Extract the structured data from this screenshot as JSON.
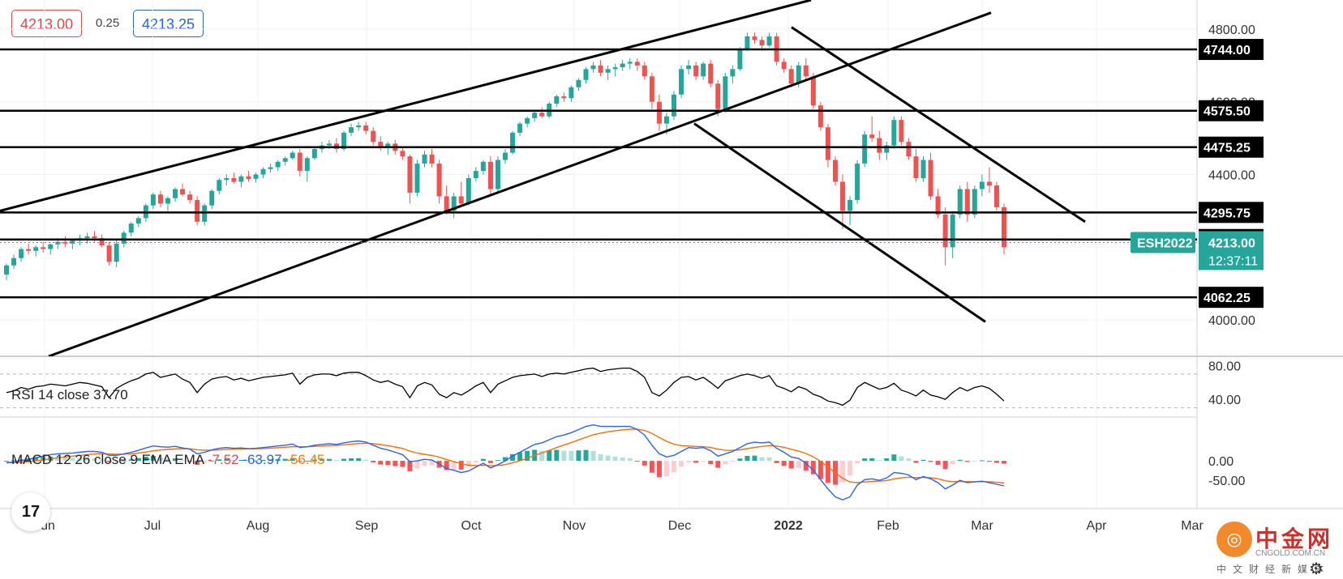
{
  "header": {
    "bid": "4213.00",
    "spread": "0.25",
    "ask": "4213.25"
  },
  "chart_data": [
    {
      "type": "candlestick",
      "symbol": "ESH2022",
      "last_price": "4213.00",
      "countdown": "12:37:11",
      "x_tick_labels": [
        "Jun",
        "Jul",
        "Aug",
        "Sep",
        "Oct",
        "Nov",
        "Dec",
        "2022",
        "Feb",
        "Mar",
        "Apr",
        "Mar"
      ],
      "y_tick_labels": [
        "4800.00",
        "4600.00",
        "4400.00",
        "4000.00"
      ],
      "ylim": [
        3900,
        4880
      ],
      "horizontal_levels": [
        "4744.00",
        "4575.50",
        "4475.25",
        "4295.75",
        "4221.25",
        "4062.25"
      ],
      "trendlines": [
        {
          "from": [
            "Jun",
            4300
          ],
          "to": [
            "2022",
            4880
          ]
        },
        {
          "from": [
            "Jun",
            3900
          ],
          "to": [
            "Mar",
            4845
          ]
        },
        {
          "from": [
            "2022",
            4805
          ],
          "to": [
            "Apr",
            4270
          ]
        },
        {
          "from": [
            "Dec",
            4540
          ],
          "to": [
            "Mar",
            3995
          ]
        }
      ],
      "candles_ohlc": [
        [
          4125,
          4155,
          4110,
          4150
        ],
        [
          4150,
          4180,
          4140,
          4170
        ],
        [
          4170,
          4200,
          4160,
          4195
        ],
        [
          4195,
          4210,
          4180,
          4190
        ],
        [
          4190,
          4205,
          4175,
          4200
        ],
        [
          4200,
          4215,
          4185,
          4195
        ],
        [
          4195,
          4210,
          4180,
          4208
        ],
        [
          4208,
          4225,
          4195,
          4215
        ],
        [
          4215,
          4230,
          4200,
          4210
        ],
        [
          4210,
          4220,
          4195,
          4218
        ],
        [
          4218,
          4235,
          4205,
          4225
        ],
        [
          4225,
          4240,
          4210,
          4230
        ],
        [
          4230,
          4245,
          4215,
          4225
        ],
        [
          4225,
          4235,
          4200,
          4205
        ],
        [
          4205,
          4215,
          4150,
          4160
        ],
        [
          4160,
          4220,
          4145,
          4210
        ],
        [
          4210,
          4245,
          4200,
          4240
        ],
        [
          4240,
          4270,
          4230,
          4265
        ],
        [
          4265,
          4285,
          4255,
          4280
        ],
        [
          4280,
          4320,
          4270,
          4315
        ],
        [
          4315,
          4350,
          4305,
          4345
        ],
        [
          4345,
          4355,
          4310,
          4320
        ],
        [
          4320,
          4340,
          4300,
          4335
        ],
        [
          4335,
          4365,
          4325,
          4360
        ],
        [
          4360,
          4375,
          4340,
          4345
        ],
        [
          4345,
          4355,
          4320,
          4330
        ],
        [
          4330,
          4340,
          4260,
          4270
        ],
        [
          4270,
          4320,
          4260,
          4315
        ],
        [
          4315,
          4360,
          4305,
          4355
        ],
        [
          4355,
          4390,
          4345,
          4385
        ],
        [
          4385,
          4400,
          4370,
          4390
        ],
        [
          4390,
          4405,
          4375,
          4380
        ],
        [
          4380,
          4400,
          4365,
          4395
        ],
        [
          4395,
          4410,
          4380,
          4388
        ],
        [
          4388,
          4405,
          4378,
          4400
        ],
        [
          4400,
          4420,
          4390,
          4415
        ],
        [
          4415,
          4430,
          4405,
          4420
        ],
        [
          4420,
          4440,
          4410,
          4435
        ],
        [
          4435,
          4450,
          4425,
          4445
        ],
        [
          4445,
          4465,
          4440,
          4460
        ],
        [
          4460,
          4470,
          4395,
          4410
        ],
        [
          4410,
          4450,
          4380,
          4445
        ],
        [
          4445,
          4475,
          4440,
          4470
        ],
        [
          4470,
          4490,
          4460,
          4480
        ],
        [
          4480,
          4495,
          4470,
          4485
        ],
        [
          4485,
          4500,
          4460,
          4470
        ],
        [
          4470,
          4520,
          4465,
          4515
        ],
        [
          4515,
          4540,
          4505,
          4530
        ],
        [
          4530,
          4545,
          4520,
          4535
        ],
        [
          4535,
          4545,
          4510,
          4520
        ],
        [
          4520,
          4530,
          4480,
          4490
        ],
        [
          4490,
          4505,
          4465,
          4475
        ],
        [
          4475,
          4490,
          4455,
          4485
        ],
        [
          4485,
          4495,
          4455,
          4465
        ],
        [
          4465,
          4475,
          4440,
          4450
        ],
        [
          4450,
          4455,
          4320,
          4350
        ],
        [
          4350,
          4440,
          4340,
          4430
        ],
        [
          4430,
          4465,
          4420,
          4455
        ],
        [
          4455,
          4470,
          4420,
          4430
        ],
        [
          4430,
          4440,
          4320,
          4340
        ],
        [
          4340,
          4370,
          4290,
          4300
        ],
        [
          4300,
          4350,
          4280,
          4340
        ],
        [
          4340,
          4380,
          4310,
          4320
        ],
        [
          4320,
          4400,
          4315,
          4390
        ],
        [
          4390,
          4420,
          4380,
          4410
        ],
        [
          4410,
          4440,
          4400,
          4435
        ],
        [
          4435,
          4450,
          4340,
          4360
        ],
        [
          4360,
          4450,
          4350,
          4440
        ],
        [
          4440,
          4470,
          4430,
          4460
        ],
        [
          4460,
          4520,
          4455,
          4515
        ],
        [
          4515,
          4545,
          4505,
          4540
        ],
        [
          4540,
          4560,
          4530,
          4555
        ],
        [
          4555,
          4575,
          4545,
          4570
        ],
        [
          4570,
          4585,
          4555,
          4560
        ],
        [
          4560,
          4600,
          4555,
          4595
        ],
        [
          4595,
          4620,
          4585,
          4615
        ],
        [
          4615,
          4625,
          4600,
          4610
        ],
        [
          4610,
          4645,
          4600,
          4640
        ],
        [
          4640,
          4665,
          4630,
          4660
        ],
        [
          4660,
          4695,
          4650,
          4690
        ],
        [
          4690,
          4710,
          4680,
          4700
        ],
        [
          4700,
          4715,
          4670,
          4680
        ],
        [
          4680,
          4700,
          4660,
          4690
        ],
        [
          4690,
          4705,
          4670,
          4695
        ],
        [
          4695,
          4715,
          4685,
          4705
        ],
        [
          4705,
          4720,
          4690,
          4710
        ],
        [
          4710,
          4720,
          4685,
          4700
        ],
        [
          4700,
          4710,
          4660,
          4670
        ],
        [
          4670,
          4680,
          4580,
          4600
        ],
        [
          4600,
          4620,
          4520,
          4540
        ],
        [
          4540,
          4570,
          4510,
          4560
        ],
        [
          4560,
          4630,
          4550,
          4620
        ],
        [
          4620,
          4700,
          4610,
          4690
        ],
        [
          4690,
          4715,
          4675,
          4700
        ],
        [
          4700,
          4710,
          4660,
          4670
        ],
        [
          4670,
          4710,
          4660,
          4705
        ],
        [
          4705,
          4715,
          4640,
          4650
        ],
        [
          4650,
          4660,
          4560,
          4580
        ],
        [
          4580,
          4680,
          4570,
          4670
        ],
        [
          4670,
          4700,
          4650,
          4690
        ],
        [
          4690,
          4750,
          4685,
          4745
        ],
        [
          4745,
          4790,
          4740,
          4780
        ],
        [
          4780,
          4790,
          4760,
          4770
        ],
        [
          4770,
          4780,
          4740,
          4755
        ],
        [
          4755,
          4790,
          4750,
          4780
        ],
        [
          4780,
          4790,
          4700,
          4710
        ],
        [
          4710,
          4720,
          4680,
          4690
        ],
        [
          4690,
          4700,
          4640,
          4650
        ],
        [
          4650,
          4710,
          4640,
          4700
        ],
        [
          4700,
          4720,
          4660,
          4670
        ],
        [
          4670,
          4680,
          4580,
          4590
        ],
        [
          4590,
          4600,
          4520,
          4530
        ],
        [
          4530,
          4540,
          4420,
          4440
        ],
        [
          4440,
          4450,
          4370,
          4380
        ],
        [
          4380,
          4400,
          4250,
          4300
        ],
        [
          4300,
          4340,
          4260,
          4330
        ],
        [
          4330,
          4440,
          4320,
          4430
        ],
        [
          4430,
          4520,
          4420,
          4510
        ],
        [
          4510,
          4560,
          4490,
          4500
        ],
        [
          4500,
          4520,
          4440,
          4460
        ],
        [
          4460,
          4490,
          4440,
          4480
        ],
        [
          4480,
          4560,
          4470,
          4550
        ],
        [
          4550,
          4560,
          4480,
          4490
        ],
        [
          4490,
          4500,
          4440,
          4450
        ],
        [
          4450,
          4470,
          4380,
          4390
        ],
        [
          4390,
          4450,
          4380,
          4440
        ],
        [
          4440,
          4460,
          4330,
          4340
        ],
        [
          4340,
          4360,
          4280,
          4290
        ],
        [
          4290,
          4310,
          4150,
          4200
        ],
        [
          4200,
          4300,
          4170,
          4290
        ],
        [
          4290,
          4370,
          4280,
          4360
        ],
        [
          4360,
          4380,
          4270,
          4290
        ],
        [
          4290,
          4370,
          4280,
          4360
        ],
        [
          4360,
          4400,
          4340,
          4380
        ],
        [
          4380,
          4420,
          4350,
          4370
        ],
        [
          4370,
          4380,
          4300,
          4310
        ],
        [
          4310,
          4320,
          4180,
          4200
        ]
      ],
      "rsi": {
        "label": "RSI 14 close",
        "value": "37.70",
        "ylim": [
          20,
          90
        ],
        "levels": [
          70,
          30
        ],
        "tick_labels": [
          "80.00",
          "40.00"
        ],
        "values": [
          48,
          50,
          54,
          52,
          55,
          56,
          58,
          57,
          56,
          58,
          60,
          59,
          57,
          55,
          42,
          53,
          58,
          62,
          65,
          70,
          72,
          66,
          68,
          70,
          64,
          60,
          48,
          58,
          64,
          66,
          67,
          63,
          65,
          62,
          64,
          66,
          67,
          68,
          69,
          71,
          58,
          66,
          69,
          70,
          70,
          68,
          71,
          72,
          72,
          68,
          63,
          60,
          62,
          58,
          55,
          42,
          56,
          60,
          57,
          46,
          42,
          48,
          45,
          50,
          56,
          60,
          48,
          58,
          62,
          66,
          68,
          69,
          70,
          67,
          70,
          71,
          70,
          72,
          74,
          76,
          77,
          73,
          75,
          76,
          77,
          77,
          73,
          66,
          48,
          44,
          51,
          60,
          66,
          67,
          63,
          66,
          60,
          53,
          62,
          65,
          68,
          70,
          68,
          65,
          68,
          56,
          53,
          49,
          55,
          52,
          46,
          43,
          38,
          36,
          33,
          39,
          54,
          60,
          56,
          52,
          54,
          59,
          51,
          48,
          44,
          51,
          45,
          43,
          40,
          48,
          54,
          50,
          54,
          56,
          53,
          46,
          38
        ]
      },
      "macd": {
        "label": "MACD 12 26 close 9 EMA EMA",
        "histogram_value": "-7.52",
        "macd_value": "-63.97",
        "signal_value": "-56.45",
        "ylim": [
          -120,
          110
        ],
        "tick_labels": [
          "0.00",
          "-50.00"
        ],
        "macd": [
          -5,
          -3,
          0,
          4,
          8,
          12,
          16,
          18,
          19,
          20,
          22,
          24,
          24,
          22,
          14,
          14,
          18,
          22,
          27,
          33,
          38,
          36,
          35,
          37,
          33,
          30,
          18,
          22,
          28,
          32,
          34,
          32,
          33,
          31,
          32,
          34,
          36,
          38,
          40,
          43,
          34,
          36,
          40,
          42,
          44,
          42,
          46,
          49,
          51,
          48,
          40,
          32,
          28,
          22,
          16,
          -2,
          0,
          4,
          2,
          -8,
          -20,
          -24,
          -30,
          -26,
          -16,
          -6,
          -18,
          -10,
          0,
          12,
          22,
          32,
          42,
          46,
          54,
          62,
          66,
          72,
          80,
          88,
          92,
          88,
          88,
          88,
          88,
          88,
          80,
          66,
          40,
          18,
          10,
          14,
          24,
          34,
          32,
          34,
          26,
          12,
          18,
          24,
          34,
          44,
          48,
          46,
          48,
          32,
          22,
          10,
          6,
          -6,
          -24,
          -48,
          -72,
          -92,
          -100,
          -92,
          -62,
          -48,
          -46,
          -50,
          -44,
          -30,
          -32,
          -36,
          -48,
          -40,
          -46,
          -56,
          -72,
          -62,
          -50,
          -56,
          -54,
          -52,
          -56,
          -60,
          -64
        ]
      },
      "legend_colors": {
        "up": "#26a69a",
        "down": "#ef5350",
        "macd": "#2962ff",
        "signal": "#ff6d00"
      }
    }
  ]
}
